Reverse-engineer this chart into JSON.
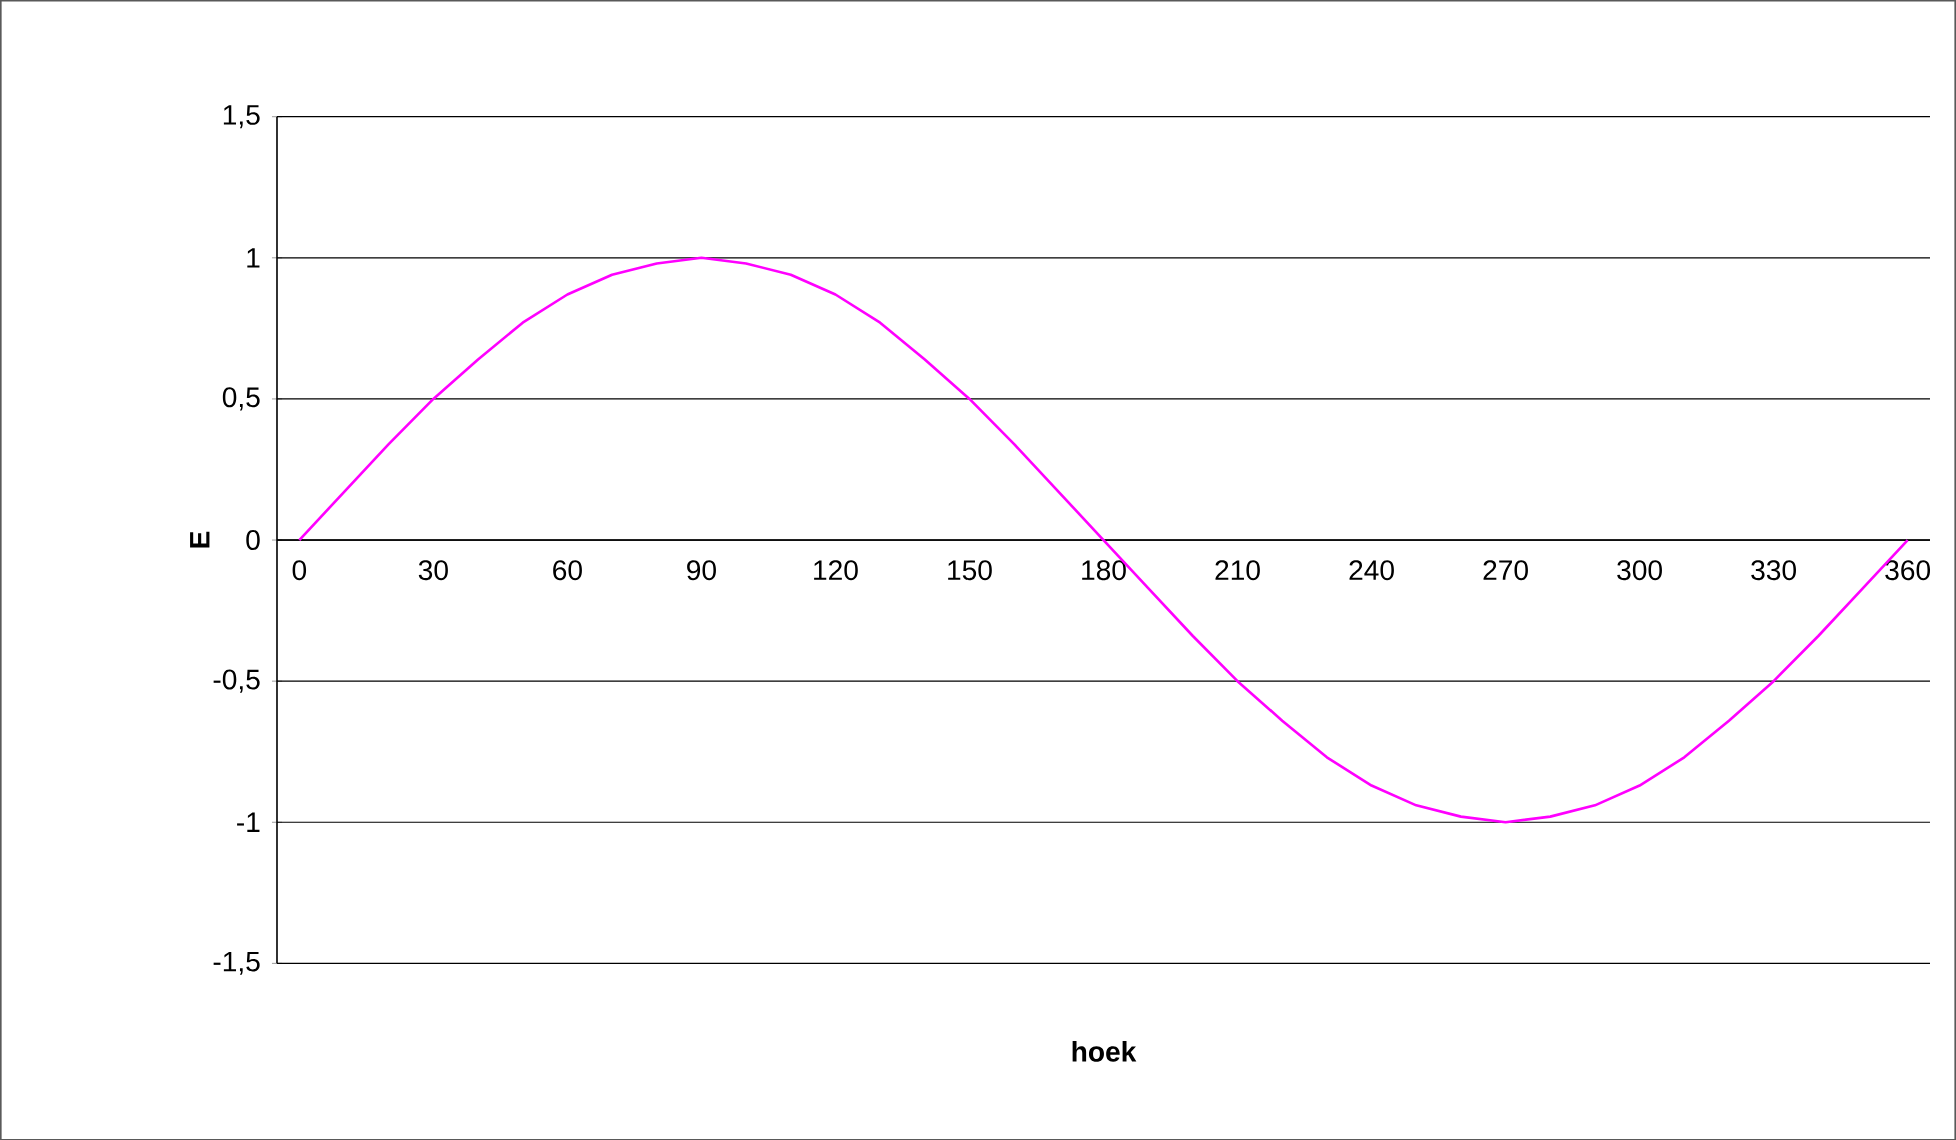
{
  "chart_data": {
    "type": "line",
    "xlabel": "hoek",
    "ylabel": "E",
    "categories": [
      "0",
      null,
      null,
      "30",
      null,
      null,
      "60",
      null,
      null,
      "90",
      null,
      null,
      "120",
      null,
      null,
      "150",
      null,
      null,
      "180",
      null,
      null,
      "210",
      null,
      null,
      "240",
      null,
      null,
      "270",
      null,
      null,
      "300",
      null,
      null,
      "330",
      null,
      null,
      "360"
    ],
    "series": [
      {
        "color": "#ff00ff",
        "values": [
          0,
          0.17,
          0.34,
          0.5,
          0.64,
          0.77,
          0.87,
          0.94,
          0.98,
          1,
          0.98,
          0.94,
          0.87,
          0.77,
          0.64,
          0.5,
          0.34,
          0.17,
          0,
          -0.17,
          -0.34,
          -0.5,
          -0.64,
          -0.77,
          -0.87,
          -0.94,
          -0.98,
          -1,
          -0.98,
          -0.94,
          -0.87,
          -0.77,
          -0.64,
          -0.5,
          -0.34,
          -0.17,
          0
        ]
      }
    ],
    "ylim": [
      -1.5,
      1.5
    ],
    "yticks": [
      {
        "value": -1.5,
        "label": "-1,5"
      },
      {
        "value": -1,
        "label": "-1"
      },
      {
        "value": -0.5,
        "label": "-0,5"
      },
      {
        "value": 0,
        "label": "0"
      },
      {
        "value": 0.5,
        "label": "0,5"
      },
      {
        "value": 1,
        "label": "1"
      },
      {
        "value": 1.5,
        "label": "1,5"
      }
    ],
    "grid": "y",
    "marker": "none",
    "line_style": "solid"
  }
}
